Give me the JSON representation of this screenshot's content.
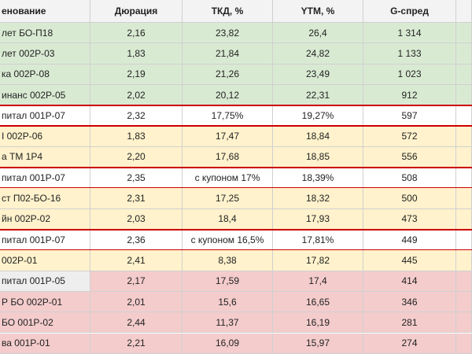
{
  "table": {
    "columns": [
      "енование",
      "Дюрация",
      "ТКД, %",
      "YTM, %",
      "G-спред"
    ],
    "rows": [
      {
        "cells": [
          "лет БО-П18",
          "2,16",
          "23,82",
          "26,4",
          "1 314"
        ],
        "color": "#d9ead3"
      },
      {
        "cells": [
          "лет 002Р-03",
          "1,83",
          "21,84",
          "24,82",
          "1 133"
        ],
        "color": "#d9ead3"
      },
      {
        "cells": [
          "ка 002Р-08",
          "2,19",
          "21,26",
          "23,49",
          "1 023"
        ],
        "color": "#d9ead3"
      },
      {
        "cells": [
          "инанс 002Р-05",
          "2,02",
          "20,12",
          "22,31",
          "912"
        ],
        "color": "#d9ead3"
      },
      {
        "cells": [
          "питал 001Р-07",
          "2,32",
          "17,75%",
          "19,27%",
          "597"
        ],
        "color": "#ffffff",
        "outlined": true
      },
      {
        "cells": [
          "I 002Р-06",
          "1,83",
          "17,47",
          "18,84",
          "572"
        ],
        "color": "#fff2cc"
      },
      {
        "cells": [
          "а ТМ 1Р4",
          "2,20",
          "17,68",
          "18,85",
          "556"
        ],
        "color": "#fff2cc"
      },
      {
        "cells": [
          "питал 001Р-07",
          "2,35",
          "с купоном 17%",
          "18,39%",
          "508"
        ],
        "color": "#ffffff",
        "outlined": true
      },
      {
        "cells": [
          "ст П02-БО-16",
          "2,31",
          "17,25",
          "18,32",
          "500"
        ],
        "color": "#fff2cc"
      },
      {
        "cells": [
          "йн 002Р-02",
          "2,03",
          "18,4",
          "17,93",
          "473"
        ],
        "color": "#fff2cc"
      },
      {
        "cells": [
          "питал 001Р-07",
          "2,36",
          "с купоном 16,5%",
          "17,81%",
          "449"
        ],
        "color": "#ffffff",
        "outlined": true
      },
      {
        "cells": [
          "002Р-01",
          "2,41",
          "8,38",
          "17,82",
          "445"
        ],
        "color": "#fff2cc"
      },
      {
        "cells": [
          "питал 001Р-05",
          "2,17",
          "17,59",
          "17,4",
          "414"
        ],
        "color": "#f4cccc",
        "name_color": "#eeeeee"
      },
      {
        "cells": [
          "Р БО 002Р-01",
          "2,01",
          "15,6",
          "16,65",
          "346"
        ],
        "color": "#f4cccc"
      },
      {
        "cells": [
          "БО 001Р-02",
          "2,44",
          "11,37",
          "16,19",
          "281"
        ],
        "color": "#f4cccc"
      },
      {
        "cells": [
          "ва 001Р-01",
          "2,21",
          "16,09",
          "15,97",
          "274"
        ],
        "color": "#f4cccc"
      }
    ]
  }
}
